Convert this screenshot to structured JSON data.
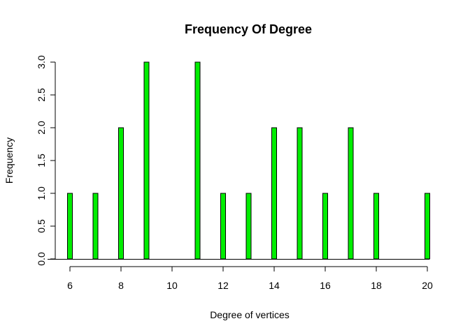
{
  "chart_data": {
    "type": "bar",
    "title": "Frequency Of Degree",
    "xlabel": "Degree of vertices",
    "ylabel": "Frequency",
    "x": [
      6,
      7,
      8,
      9,
      11,
      12,
      13,
      14,
      15,
      16,
      17,
      18,
      20
    ],
    "values": [
      1,
      1,
      2,
      3,
      3,
      1,
      1,
      2,
      2,
      1,
      2,
      1,
      1
    ],
    "xlim": [
      6,
      20
    ],
    "ylim": [
      0,
      3
    ],
    "xticks": [
      6,
      8,
      10,
      12,
      14,
      16,
      18,
      20
    ],
    "xtick_labels": [
      "6",
      "8",
      "10",
      "12",
      "14",
      "16",
      "18",
      "20"
    ],
    "yticks": [
      0,
      0.5,
      1,
      1.5,
      2,
      2.5,
      3
    ],
    "ytick_labels": [
      "0.0",
      "0.5",
      "1.0",
      "1.5",
      "2.0",
      "2.5",
      "3.0"
    ],
    "bar_color": "#00EE00",
    "bar_border": "#000000",
    "grid": false,
    "legend": "none"
  }
}
